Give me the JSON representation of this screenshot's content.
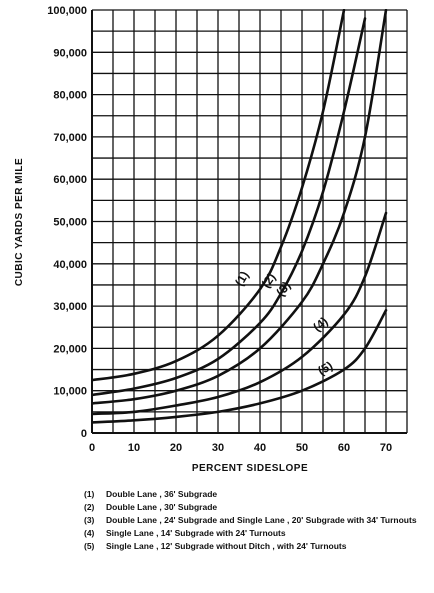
{
  "chart_data": {
    "type": "line",
    "title": "",
    "xlabel": "PERCENT SIDESLOPE",
    "ylabel": "CUBIC YARDS PER MILE",
    "xlim": [
      0,
      75
    ],
    "ylim": [
      0,
      100000
    ],
    "x_ticks": [
      "0",
      "10",
      "20",
      "30",
      "40",
      "50",
      "60",
      "70"
    ],
    "y_ticks": [
      "0",
      "10,000",
      "20,000",
      "30,000",
      "40,000",
      "50,000",
      "60,000",
      "70,000",
      "80,000",
      "90,000",
      "100,000"
    ],
    "grid": true,
    "series": [
      {
        "name": "(1)",
        "x": [
          0,
          10,
          20,
          30,
          40,
          45,
          50,
          55,
          60
        ],
        "y": [
          12500,
          14000,
          17000,
          23000,
          34000,
          44000,
          58000,
          76000,
          100000
        ]
      },
      {
        "name": "(2)",
        "x": [
          0,
          10,
          20,
          30,
          40,
          45,
          50,
          55,
          60,
          65
        ],
        "y": [
          9000,
          10500,
          13000,
          17500,
          26000,
          33000,
          43000,
          57000,
          76000,
          98000
        ]
      },
      {
        "name": "(3)",
        "x": [
          0,
          10,
          20,
          30,
          40,
          50,
          55,
          60,
          65,
          70
        ],
        "y": [
          7000,
          8000,
          10000,
          13500,
          20000,
          31000,
          40000,
          52000,
          70000,
          100000
        ]
      },
      {
        "name": "(4)",
        "x": [
          0,
          10,
          20,
          30,
          40,
          50,
          60,
          65,
          70
        ],
        "y": [
          4500,
          5000,
          6500,
          8500,
          12000,
          18000,
          28000,
          37000,
          52000
        ]
      },
      {
        "name": "(5)",
        "x": [
          0,
          10,
          20,
          30,
          40,
          50,
          60,
          65,
          70
        ],
        "y": [
          2500,
          3000,
          3800,
          5000,
          7000,
          10000,
          15000,
          20000,
          29000
        ]
      }
    ]
  },
  "legend": [
    {
      "key": "(1)",
      "text": "Double Lane , 36' Subgrade"
    },
    {
      "key": "(2)",
      "text": "Double Lane , 30' Subgrade"
    },
    {
      "key": "(3)",
      "text": "Double Lane , 24' Subgrade and Single Lane , 20' Subgrade with 34' Turnouts"
    },
    {
      "key": "(4)",
      "text": "Single Lane , 14' Subgrade with 24' Turnouts"
    },
    {
      "key": "(5)",
      "text": "Single Lane , 12' Subgrade without Ditch , with 24' Turnouts"
    }
  ]
}
